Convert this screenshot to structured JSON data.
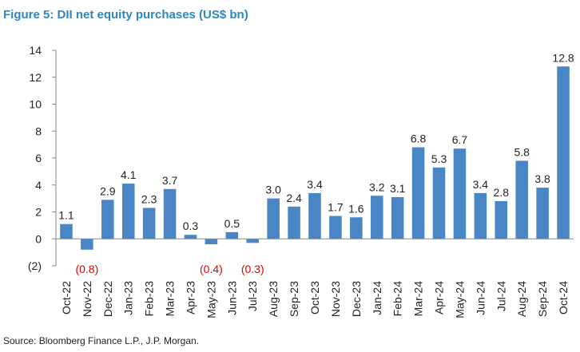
{
  "chart_data": {
    "type": "bar",
    "title": "Figure 5: DII net equity purchases (US$ bn)",
    "xlabel": "",
    "ylabel": "",
    "ylim": [
      -2,
      14
    ],
    "yticks": [
      "(2)",
      "0",
      "2",
      "4",
      "6",
      "8",
      "10",
      "12",
      "14"
    ],
    "ytick_values": [
      -2,
      0,
      2,
      4,
      6,
      8,
      10,
      12,
      14
    ],
    "categories": [
      "Oct-22",
      "Nov-22",
      "Dec-22",
      "Jan-23",
      "Feb-23",
      "Mar-23",
      "Apr-23",
      "May-23",
      "Jun-23",
      "Jul-23",
      "Aug-23",
      "Sep-23",
      "Oct-23",
      "Nov-23",
      "Dec-23",
      "Jan-24",
      "Feb-24",
      "Mar-24",
      "Apr-24",
      "May-24",
      "Jun-24",
      "Jul-24",
      "Aug-24",
      "Sep-24",
      "Oct-24"
    ],
    "values": [
      1.1,
      -0.8,
      2.9,
      4.1,
      2.3,
      3.7,
      0.3,
      -0.4,
      0.5,
      -0.3,
      3.0,
      2.4,
      3.4,
      1.7,
      1.6,
      3.2,
      3.1,
      6.8,
      5.3,
      6.7,
      3.4,
      2.8,
      5.8,
      3.8,
      12.8
    ],
    "labels": [
      "1.1",
      "(0.8)",
      "2.9",
      "4.1",
      "2.3",
      "3.7",
      "0.3",
      "(0.4)",
      "0.5",
      "(0.3)",
      "3.0",
      "2.4",
      "3.4",
      "1.7",
      "1.6",
      "3.2",
      "3.1",
      "6.8",
      "5.3",
      "6.7",
      "3.4",
      "2.8",
      "5.8",
      "3.8",
      "12.8"
    ],
    "grid": false,
    "legend": "none",
    "source": "Source: Bloomberg Finance L.P., J.P. Morgan."
  },
  "colors": {
    "bar": "#4a86c5",
    "title": "#2e86c1",
    "negative_label": "#e00000",
    "axis": "#888888"
  }
}
